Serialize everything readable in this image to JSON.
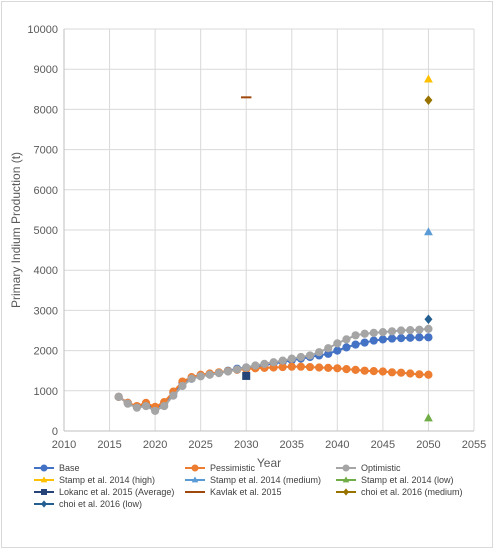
{
  "chart_data": {
    "type": "line",
    "xlabel": "Year",
    "ylabel": "Primary Indium Production (t)",
    "xlim": [
      2010,
      2055
    ],
    "ylim": [
      0,
      10000
    ],
    "xticks": [
      2010,
      2015,
      2020,
      2025,
      2030,
      2035,
      2040,
      2045,
      2050,
      2055
    ],
    "yticks": [
      0,
      1000,
      2000,
      3000,
      4000,
      5000,
      6000,
      7000,
      8000,
      9000,
      10000
    ],
    "grid": true,
    "legend_position": "bottom",
    "series": [
      {
        "name": "Base",
        "kind": "line",
        "color": "#4472c4",
        "marker": "circle",
        "x": [
          2016,
          2017,
          2018,
          2019,
          2020,
          2021,
          2022,
          2023,
          2024,
          2025,
          2026,
          2027,
          2028,
          2029,
          2030,
          2031,
          2032,
          2033,
          2034,
          2035,
          2036,
          2037,
          2038,
          2039,
          2040,
          2041,
          2042,
          2043,
          2044,
          2045,
          2046,
          2047,
          2048,
          2049,
          2050
        ],
        "y": [
          850,
          700,
          600,
          680,
          550,
          700,
          950,
          1200,
          1300,
          1380,
          1420,
          1450,
          1500,
          1550,
          1580,
          1600,
          1640,
          1680,
          1720,
          1760,
          1800,
          1840,
          1880,
          1920,
          2000,
          2080,
          2150,
          2200,
          2250,
          2280,
          2300,
          2310,
          2320,
          2330,
          2330
        ]
      },
      {
        "name": "Pessimistic",
        "kind": "line",
        "color": "#ed7d31",
        "marker": "circle",
        "x": [
          2016,
          2017,
          2018,
          2019,
          2020,
          2021,
          2022,
          2023,
          2024,
          2025,
          2026,
          2027,
          2028,
          2029,
          2030,
          2031,
          2032,
          2033,
          2034,
          2035,
          2036,
          2037,
          2038,
          2039,
          2040,
          2041,
          2042,
          2043,
          2044,
          2045,
          2046,
          2047,
          2048,
          2049,
          2050
        ],
        "y": [
          850,
          700,
          620,
          700,
          600,
          720,
          980,
          1230,
          1340,
          1400,
          1430,
          1460,
          1490,
          1520,
          1540,
          1560,
          1570,
          1580,
          1590,
          1600,
          1600,
          1590,
          1580,
          1570,
          1560,
          1540,
          1520,
          1500,
          1490,
          1480,
          1460,
          1450,
          1430,
          1410,
          1400
        ]
      },
      {
        "name": "Optimistic",
        "kind": "line",
        "color": "#a5a5a5",
        "marker": "circle",
        "x": [
          2016,
          2017,
          2018,
          2019,
          2020,
          2021,
          2022,
          2023,
          2024,
          2025,
          2026,
          2027,
          2028,
          2029,
          2030,
          2031,
          2032,
          2033,
          2034,
          2035,
          2036,
          2037,
          2038,
          2039,
          2040,
          2041,
          2042,
          2043,
          2044,
          2045,
          2046,
          2047,
          2048,
          2049,
          2050
        ],
        "y": [
          850,
          680,
          580,
          620,
          500,
          620,
          880,
          1120,
          1300,
          1360,
          1400,
          1440,
          1480,
          1530,
          1580,
          1630,
          1670,
          1710,
          1750,
          1800,
          1840,
          1880,
          1960,
          2060,
          2180,
          2280,
          2380,
          2420,
          2440,
          2460,
          2480,
          2500,
          2510,
          2520,
          2540
        ]
      },
      {
        "name": "Stamp et al. 2014 (high)",
        "kind": "point",
        "color": "#ffc000",
        "marker": "triangle",
        "x": [
          2050
        ],
        "y": [
          8750
        ]
      },
      {
        "name": "Stamp et al. 2014 (medium)",
        "kind": "point",
        "color": "#5b9bd5",
        "marker": "triangle",
        "x": [
          2050
        ],
        "y": [
          4950
        ]
      },
      {
        "name": "Stamp et al. 2014 (low)",
        "kind": "point",
        "color": "#70ad47",
        "marker": "triangle",
        "x": [
          2050
        ],
        "y": [
          320
        ]
      },
      {
        "name": "Lokanc et al. 2015 (Average)",
        "kind": "point",
        "color": "#264478",
        "marker": "square",
        "x": [
          2030
        ],
        "y": [
          1370
        ]
      },
      {
        "name": "Kavlak et al. 2015",
        "kind": "point",
        "color": "#9e480e",
        "marker": "dash",
        "x": [
          2030
        ],
        "y": [
          8300
        ]
      },
      {
        "name": "choi et al. 2016 (medium)",
        "kind": "point",
        "color": "#997300",
        "marker": "diamond",
        "x": [
          2050
        ],
        "y": [
          8230
        ]
      },
      {
        "name": "choi et al. 2016 (low)",
        "kind": "point",
        "color": "#255e91",
        "marker": "diamond",
        "x": [
          2050
        ],
        "y": [
          2780
        ]
      }
    ]
  }
}
